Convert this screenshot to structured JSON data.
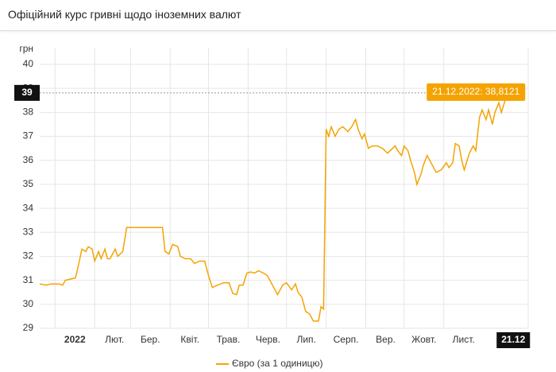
{
  "header": {
    "title": "Офіційний курс гривні щодо іноземних валют"
  },
  "chart_data": {
    "type": "line",
    "y_label": "грн",
    "x": [
      -12,
      -7,
      -3,
      3,
      6,
      8,
      12,
      16,
      19,
      21,
      24,
      26,
      29,
      31,
      34,
      36,
      39,
      41,
      43,
      47,
      49,
      53,
      56,
      84,
      86,
      89,
      92,
      96,
      98,
      102,
      106,
      109,
      113,
      117,
      120,
      123,
      127,
      132,
      136,
      139,
      142,
      144,
      147,
      150,
      153,
      156,
      159,
      163,
      166,
      170,
      174,
      178,
      181,
      185,
      188,
      190,
      193,
      196,
      199,
      202,
      206,
      208,
      210,
      212,
      214,
      216,
      219,
      222,
      225,
      229,
      232,
      235,
      237,
      240,
      242,
      245,
      248,
      252,
      256,
      260,
      264,
      266,
      268,
      271,
      273,
      276,
      278,
      281,
      283,
      286,
      288,
      291,
      294,
      298,
      302,
      306,
      308,
      311,
      313,
      316,
      318,
      320,
      324,
      327,
      329,
      332,
      334,
      337,
      339,
      342,
      344,
      347,
      349,
      352,
      354
    ],
    "series": [
      {
        "name": "Євро (за 1 одиницю)",
        "color": "#f5a300",
        "values": [
          30.85,
          30.8,
          30.85,
          30.85,
          30.8,
          31.0,
          31.05,
          31.1,
          31.8,
          32.3,
          32.2,
          32.4,
          32.3,
          31.8,
          32.2,
          31.9,
          32.3,
          31.9,
          31.9,
          32.3,
          32.0,
          32.2,
          33.2,
          33.2,
          32.2,
          32.1,
          32.5,
          32.4,
          32.0,
          31.9,
          31.9,
          31.7,
          31.8,
          31.8,
          31.2,
          30.7,
          30.8,
          30.9,
          30.9,
          30.45,
          30.4,
          30.8,
          30.8,
          31.3,
          31.35,
          31.3,
          31.4,
          31.3,
          31.2,
          30.8,
          30.4,
          30.8,
          30.9,
          30.6,
          30.85,
          30.5,
          30.3,
          29.7,
          29.6,
          29.3,
          29.3,
          29.9,
          29.8,
          37.3,
          37.0,
          37.4,
          37.0,
          37.3,
          37.4,
          37.2,
          37.4,
          37.7,
          37.3,
          36.9,
          37.1,
          36.5,
          36.6,
          36.6,
          36.5,
          36.3,
          36.5,
          36.6,
          36.4,
          36.2,
          36.6,
          36.4,
          36.0,
          35.5,
          35.0,
          35.4,
          35.8,
          36.2,
          35.9,
          35.5,
          35.6,
          35.9,
          35.7,
          35.9,
          36.7,
          36.6,
          36.0,
          35.6,
          36.3,
          36.6,
          36.4,
          37.8,
          38.1,
          37.7,
          38.1,
          37.5,
          38.0,
          38.4,
          38.0,
          38.5,
          38.8121
        ]
      }
    ],
    "xlim": [
      -12,
      370
    ],
    "xticks": [
      {
        "value": 0,
        "label": "2022"
      },
      {
        "value": 31,
        "label": "Лют."
      },
      {
        "value": 59,
        "label": "Бер."
      },
      {
        "value": 90,
        "label": "Квіт."
      },
      {
        "value": 120,
        "label": "Трав."
      },
      {
        "value": 151,
        "label": "Черв."
      },
      {
        "value": 181,
        "label": "Лип."
      },
      {
        "value": 212,
        "label": "Серп."
      },
      {
        "value": 243,
        "label": "Вер."
      },
      {
        "value": 273,
        "label": "Жовт."
      },
      {
        "value": 304,
        "label": "Лист."
      }
    ],
    "ylim": [
      29,
      40
    ],
    "yticks": [
      29,
      30,
      31,
      32,
      33,
      34,
      35,
      36,
      37,
      38,
      39,
      40
    ],
    "grid": true,
    "crosshair": {
      "x": 354,
      "value": 38.8121,
      "x_label": "21.12",
      "y_label": "39",
      "tooltip": "21.12.2022: 38,8121"
    }
  }
}
